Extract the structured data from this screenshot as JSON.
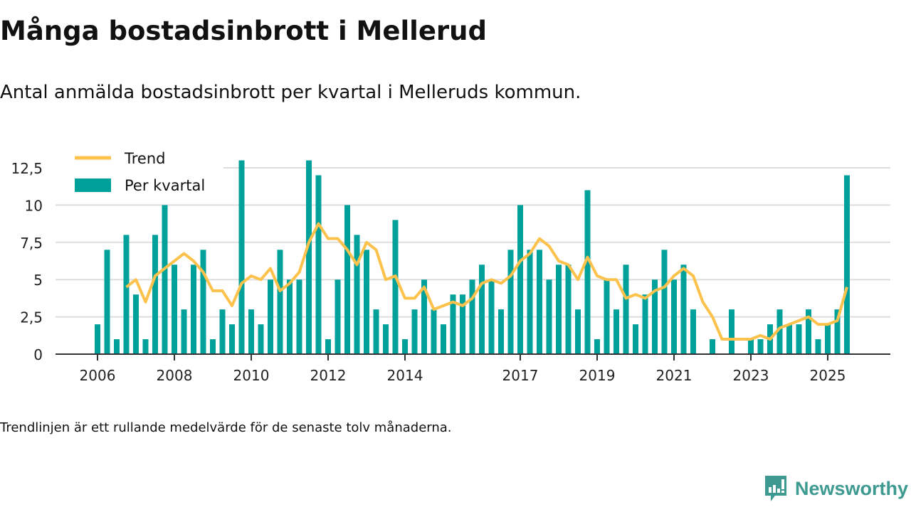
{
  "title": "Många bostadsinbrott i Mellerud",
  "subtitle": "Antal anmälda bostadsinbrott per kvartal i Melleruds kommun.",
  "footnote": "Trendlinjen är ett rullande medelvärde för de senaste tolv månaderna.",
  "brand": "Newsworthy",
  "colors": {
    "bar": "#00a19a",
    "trend": "#fcc24c",
    "grid": "#dddddd",
    "axis": "#333333"
  },
  "chart_data": {
    "type": "bar",
    "title": "Många bostadsinbrott i Mellerud",
    "xlabel": "",
    "ylabel": "",
    "ylim": [
      0,
      13
    ],
    "yticks": [
      0,
      2.5,
      5,
      7.5,
      10,
      12.5
    ],
    "ytick_labels": [
      "0",
      "2,5",
      "5",
      "7,5",
      "10",
      "12,5"
    ],
    "xtick_labels": [
      "2006",
      "2008",
      "2010",
      "2012",
      "2014",
      "2017",
      "2019",
      "2021",
      "2023",
      "2025"
    ],
    "legend": {
      "placement": "top-left",
      "entries": [
        "Trend",
        "Per kvartal"
      ]
    },
    "start": "2006 Q1",
    "series": [
      {
        "name": "Per kvartal",
        "type": "bar",
        "values": [
          2,
          7,
          1,
          8,
          4,
          1,
          8,
          10,
          6,
          3,
          6,
          7,
          1,
          3,
          2,
          13,
          3,
          2,
          5,
          7,
          5,
          5,
          13,
          12,
          1,
          5,
          10,
          8,
          7,
          3,
          2,
          9,
          1,
          3,
          5,
          3,
          2,
          4,
          4,
          5,
          6,
          5,
          3,
          7,
          10,
          7,
          7,
          5,
          6,
          6,
          3,
          11,
          1,
          5,
          3,
          6,
          2,
          4,
          5,
          7,
          5,
          6,
          3,
          0,
          1,
          0,
          3,
          0,
          1,
          1,
          2,
          3,
          2,
          2,
          3,
          1,
          2,
          3,
          12
        ]
      },
      {
        "name": "Trend",
        "type": "line",
        "values": [
          null,
          null,
          null,
          4.5,
          5,
          3.5,
          5.25,
          5.75,
          6.25,
          6.75,
          6.25,
          5.5,
          4.25,
          4.25,
          3.25,
          4.75,
          5.25,
          5,
          5.75,
          4.25,
          4.75,
          5.5,
          7.5,
          8.75,
          7.75,
          7.75,
          7,
          6,
          7.5,
          7,
          5,
          5.25,
          3.75,
          3.75,
          4.5,
          3,
          3.25,
          3.5,
          3.25,
          3.75,
          4.75,
          5,
          4.75,
          5.25,
          6.25,
          6.75,
          7.75,
          7.25,
          6.25,
          6,
          5,
          6.5,
          5.25,
          5,
          5,
          3.75,
          4,
          3.75,
          4.25,
          4.5,
          5.25,
          5.75,
          5.25,
          3.5,
          2.5,
          1,
          1,
          1,
          1,
          1.25,
          1,
          1.75,
          2,
          2.25,
          2.5,
          2,
          2,
          2.25,
          4.5
        ]
      }
    ]
  }
}
